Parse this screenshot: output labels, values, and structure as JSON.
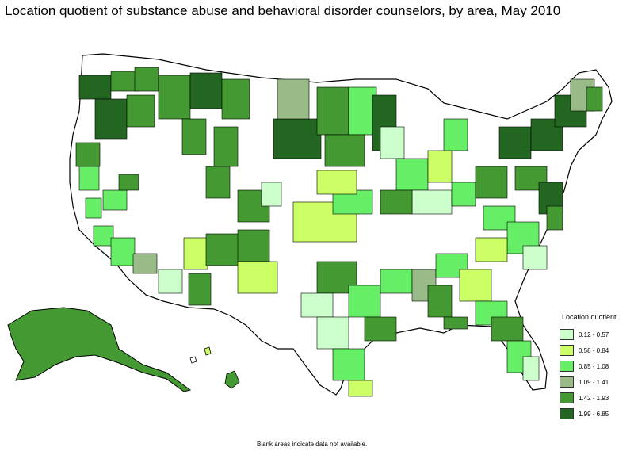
{
  "title": "Location quotient of substance abuse and behavioral disorder counselors, by area, May 2010",
  "legend": {
    "title": "Location quotient",
    "classes": [
      {
        "label": "0.12 - 0.57",
        "color": "#ccffcc"
      },
      {
        "label": "0.58 - 0.84",
        "color": "#ccff66"
      },
      {
        "label": "0.85 - 1.08",
        "color": "#66ee66"
      },
      {
        "label": "1.09 - 1.41",
        "color": "#99bb88"
      },
      {
        "label": "1.42 - 1.93",
        "color": "#449933"
      },
      {
        "label": "1.99 - 6.85",
        "color": "#226622"
      }
    ]
  },
  "footnote": "Blank areas indicate data not available.",
  "map": {
    "land_color": "#ffffff",
    "border_color": "#000000"
  }
}
